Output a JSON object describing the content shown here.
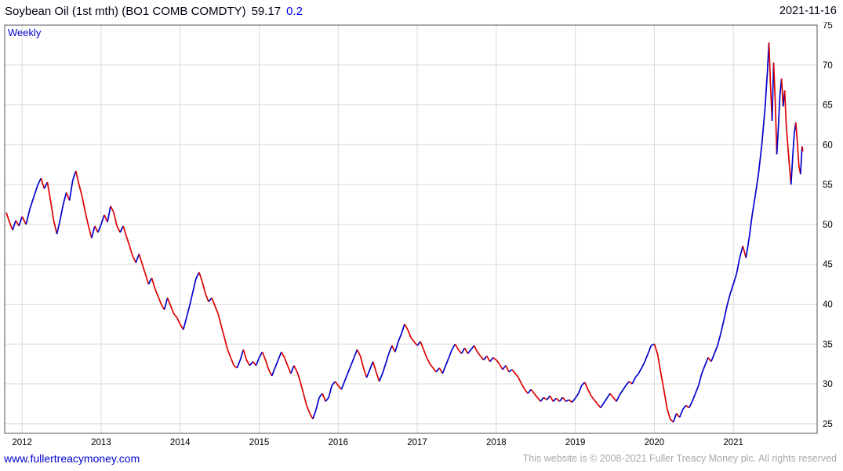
{
  "header": {
    "instrument": "Soybean Oil (1st mth) (BO1 COMB COMDTY)",
    "last_price": "59.17",
    "change": "0.2",
    "date": "2021-11-16"
  },
  "plot": {
    "frequency_label": "Weekly"
  },
  "footer": {
    "site_link": "www.fullertreacymoney.com",
    "copyright": "This website is © 2008-2021 Fuller Treacy Money plc. All rights reserved"
  },
  "colors": {
    "up": "#0000cc",
    "down": "#dd0000",
    "grid": "#d9d9d9",
    "plot_border": "#555555",
    "accent_blue": "#0000cc",
    "change_text": "#0000ee",
    "copyright_text": "#a9a9a9"
  },
  "chart_data": {
    "type": "line",
    "title": "Soybean Oil (1st mth) (BO1 COMB COMDTY)",
    "frequency": "Weekly",
    "as_of_date": "2021-11-16",
    "last": 59.17,
    "change": 0.2,
    "xlabel": "",
    "ylabel": "",
    "grid": true,
    "legend_position": "none",
    "xlim": [
      2011.78,
      2022.06
    ],
    "ylim": [
      23.8,
      75
    ],
    "yticks": [
      25,
      30,
      35,
      40,
      45,
      50,
      55,
      60,
      65,
      70,
      75
    ],
    "xticks": [
      2012,
      2013,
      2014,
      2015,
      2016,
      2017,
      2018,
      2019,
      2020,
      2021
    ],
    "series": [
      {
        "name": "BO1 COMB COMDTY weekly close (up weeks blue, down weeks red)",
        "points": [
          [
            2011.8,
            51.5
          ],
          [
            2011.84,
            50.3
          ],
          [
            2011.88,
            49.3
          ],
          [
            2011.92,
            50.5
          ],
          [
            2011.96,
            49.8
          ],
          [
            2012.0,
            51.0
          ],
          [
            2012.05,
            50.0
          ],
          [
            2012.1,
            52.0
          ],
          [
            2012.15,
            53.5
          ],
          [
            2012.2,
            55.0
          ],
          [
            2012.24,
            55.8
          ],
          [
            2012.28,
            54.5
          ],
          [
            2012.32,
            55.3
          ],
          [
            2012.36,
            53.0
          ],
          [
            2012.4,
            50.5
          ],
          [
            2012.44,
            48.8
          ],
          [
            2012.48,
            50.5
          ],
          [
            2012.52,
            52.5
          ],
          [
            2012.56,
            54.0
          ],
          [
            2012.6,
            53.0
          ],
          [
            2012.64,
            55.5
          ],
          [
            2012.68,
            56.7
          ],
          [
            2012.72,
            55.0
          ],
          [
            2012.76,
            53.5
          ],
          [
            2012.8,
            51.5
          ],
          [
            2012.84,
            49.8
          ],
          [
            2012.88,
            48.3
          ],
          [
            2012.92,
            49.8
          ],
          [
            2012.96,
            49.0
          ],
          [
            2013.0,
            50.0
          ],
          [
            2013.04,
            51.2
          ],
          [
            2013.08,
            50.3
          ],
          [
            2013.12,
            52.3
          ],
          [
            2013.16,
            51.5
          ],
          [
            2013.2,
            49.8
          ],
          [
            2013.24,
            49.0
          ],
          [
            2013.28,
            49.8
          ],
          [
            2013.32,
            48.5
          ],
          [
            2013.36,
            47.3
          ],
          [
            2013.4,
            46.0
          ],
          [
            2013.44,
            45.2
          ],
          [
            2013.48,
            46.3
          ],
          [
            2013.52,
            45.0
          ],
          [
            2013.56,
            43.8
          ],
          [
            2013.6,
            42.5
          ],
          [
            2013.64,
            43.3
          ],
          [
            2013.68,
            42.0
          ],
          [
            2013.72,
            41.0
          ],
          [
            2013.76,
            40.0
          ],
          [
            2013.8,
            39.3
          ],
          [
            2013.84,
            40.8
          ],
          [
            2013.88,
            39.8
          ],
          [
            2013.92,
            38.8
          ],
          [
            2013.96,
            38.3
          ],
          [
            2014.0,
            37.5
          ],
          [
            2014.04,
            36.8
          ],
          [
            2014.08,
            38.3
          ],
          [
            2014.12,
            39.8
          ],
          [
            2014.16,
            41.5
          ],
          [
            2014.2,
            43.2
          ],
          [
            2014.24,
            44.0
          ],
          [
            2014.28,
            42.8
          ],
          [
            2014.32,
            41.3
          ],
          [
            2014.36,
            40.3
          ],
          [
            2014.4,
            40.8
          ],
          [
            2014.44,
            39.8
          ],
          [
            2014.48,
            38.8
          ],
          [
            2014.52,
            37.3
          ],
          [
            2014.56,
            35.8
          ],
          [
            2014.6,
            34.3
          ],
          [
            2014.64,
            33.3
          ],
          [
            2014.68,
            32.3
          ],
          [
            2014.72,
            32.0
          ],
          [
            2014.76,
            33.0
          ],
          [
            2014.8,
            34.3
          ],
          [
            2014.84,
            33.0
          ],
          [
            2014.88,
            32.3
          ],
          [
            2014.92,
            32.8
          ],
          [
            2014.96,
            32.3
          ],
          [
            2015.0,
            33.3
          ],
          [
            2015.04,
            34.0
          ],
          [
            2015.08,
            33.0
          ],
          [
            2015.12,
            31.8
          ],
          [
            2015.16,
            31.0
          ],
          [
            2015.2,
            32.0
          ],
          [
            2015.24,
            33.0
          ],
          [
            2015.28,
            34.0
          ],
          [
            2015.32,
            33.3
          ],
          [
            2015.36,
            32.3
          ],
          [
            2015.4,
            31.3
          ],
          [
            2015.44,
            32.3
          ],
          [
            2015.48,
            31.5
          ],
          [
            2015.52,
            30.3
          ],
          [
            2015.56,
            28.8
          ],
          [
            2015.6,
            27.3
          ],
          [
            2015.64,
            26.3
          ],
          [
            2015.68,
            25.6
          ],
          [
            2015.72,
            26.8
          ],
          [
            2015.76,
            28.3
          ],
          [
            2015.8,
            28.8
          ],
          [
            2015.84,
            27.8
          ],
          [
            2015.88,
            28.3
          ],
          [
            2015.92,
            29.8
          ],
          [
            2015.96,
            30.3
          ],
          [
            2016.0,
            29.8
          ],
          [
            2016.04,
            29.3
          ],
          [
            2016.08,
            30.3
          ],
          [
            2016.12,
            31.3
          ],
          [
            2016.16,
            32.3
          ],
          [
            2016.2,
            33.3
          ],
          [
            2016.24,
            34.3
          ],
          [
            2016.28,
            33.5
          ],
          [
            2016.32,
            32.0
          ],
          [
            2016.36,
            30.8
          ],
          [
            2016.4,
            31.8
          ],
          [
            2016.44,
            32.8
          ],
          [
            2016.48,
            31.5
          ],
          [
            2016.52,
            30.3
          ],
          [
            2016.56,
            31.3
          ],
          [
            2016.6,
            32.5
          ],
          [
            2016.64,
            33.8
          ],
          [
            2016.68,
            34.8
          ],
          [
            2016.72,
            34.0
          ],
          [
            2016.76,
            35.3
          ],
          [
            2016.8,
            36.3
          ],
          [
            2016.84,
            37.5
          ],
          [
            2016.88,
            36.8
          ],
          [
            2016.92,
            35.8
          ],
          [
            2016.96,
            35.3
          ],
          [
            2017.0,
            34.8
          ],
          [
            2017.04,
            35.3
          ],
          [
            2017.08,
            34.3
          ],
          [
            2017.12,
            33.3
          ],
          [
            2017.16,
            32.5
          ],
          [
            2017.2,
            32.0
          ],
          [
            2017.24,
            31.5
          ],
          [
            2017.28,
            32.0
          ],
          [
            2017.32,
            31.3
          ],
          [
            2017.36,
            32.3
          ],
          [
            2017.4,
            33.3
          ],
          [
            2017.44,
            34.3
          ],
          [
            2017.48,
            35.0
          ],
          [
            2017.52,
            34.3
          ],
          [
            2017.56,
            33.8
          ],
          [
            2017.6,
            34.5
          ],
          [
            2017.64,
            33.8
          ],
          [
            2017.68,
            34.3
          ],
          [
            2017.72,
            34.8
          ],
          [
            2017.76,
            34.0
          ],
          [
            2017.8,
            33.5
          ],
          [
            2017.84,
            33.0
          ],
          [
            2017.88,
            33.5
          ],
          [
            2017.92,
            32.8
          ],
          [
            2017.96,
            33.3
          ],
          [
            2018.0,
            33.0
          ],
          [
            2018.04,
            32.5
          ],
          [
            2018.08,
            31.8
          ],
          [
            2018.12,
            32.3
          ],
          [
            2018.16,
            31.5
          ],
          [
            2018.2,
            31.8
          ],
          [
            2018.24,
            31.3
          ],
          [
            2018.28,
            30.8
          ],
          [
            2018.32,
            30.0
          ],
          [
            2018.36,
            29.3
          ],
          [
            2018.4,
            28.8
          ],
          [
            2018.44,
            29.3
          ],
          [
            2018.48,
            28.8
          ],
          [
            2018.52,
            28.3
          ],
          [
            2018.56,
            27.8
          ],
          [
            2018.6,
            28.3
          ],
          [
            2018.64,
            28.0
          ],
          [
            2018.68,
            28.5
          ],
          [
            2018.72,
            27.8
          ],
          [
            2018.76,
            28.2
          ],
          [
            2018.8,
            27.8
          ],
          [
            2018.84,
            28.3
          ],
          [
            2018.88,
            27.8
          ],
          [
            2018.92,
            28.0
          ],
          [
            2018.96,
            27.7
          ],
          [
            2019.0,
            28.2
          ],
          [
            2019.04,
            28.8
          ],
          [
            2019.08,
            29.8
          ],
          [
            2019.12,
            30.2
          ],
          [
            2019.16,
            29.3
          ],
          [
            2019.2,
            28.5
          ],
          [
            2019.24,
            28.0
          ],
          [
            2019.28,
            27.5
          ],
          [
            2019.32,
            27.0
          ],
          [
            2019.36,
            27.6
          ],
          [
            2019.4,
            28.2
          ],
          [
            2019.44,
            28.8
          ],
          [
            2019.48,
            28.3
          ],
          [
            2019.52,
            27.8
          ],
          [
            2019.56,
            28.6
          ],
          [
            2019.6,
            29.2
          ],
          [
            2019.64,
            29.8
          ],
          [
            2019.68,
            30.3
          ],
          [
            2019.72,
            30.0
          ],
          [
            2019.76,
            30.8
          ],
          [
            2019.8,
            31.3
          ],
          [
            2019.84,
            32.0
          ],
          [
            2019.88,
            32.8
          ],
          [
            2019.92,
            33.8
          ],
          [
            2019.96,
            34.8
          ],
          [
            2020.0,
            35.0
          ],
          [
            2020.04,
            33.8
          ],
          [
            2020.08,
            31.5
          ],
          [
            2020.12,
            29.3
          ],
          [
            2020.16,
            27.0
          ],
          [
            2020.2,
            25.6
          ],
          [
            2020.24,
            25.2
          ],
          [
            2020.28,
            26.3
          ],
          [
            2020.32,
            25.8
          ],
          [
            2020.36,
            26.8
          ],
          [
            2020.4,
            27.3
          ],
          [
            2020.44,
            27.0
          ],
          [
            2020.48,
            27.8
          ],
          [
            2020.52,
            28.8
          ],
          [
            2020.56,
            29.8
          ],
          [
            2020.6,
            31.3
          ],
          [
            2020.64,
            32.3
          ],
          [
            2020.68,
            33.3
          ],
          [
            2020.72,
            32.8
          ],
          [
            2020.76,
            33.8
          ],
          [
            2020.8,
            34.8
          ],
          [
            2020.84,
            36.3
          ],
          [
            2020.88,
            38.0
          ],
          [
            2020.92,
            39.8
          ],
          [
            2020.96,
            41.3
          ],
          [
            2021.0,
            42.5
          ],
          [
            2021.04,
            43.8
          ],
          [
            2021.08,
            45.8
          ],
          [
            2021.12,
            47.3
          ],
          [
            2021.16,
            45.8
          ],
          [
            2021.2,
            48.3
          ],
          [
            2021.24,
            51.3
          ],
          [
            2021.28,
            53.8
          ],
          [
            2021.32,
            56.5
          ],
          [
            2021.36,
            60.0
          ],
          [
            2021.4,
            64.5
          ],
          [
            2021.43,
            69.0
          ],
          [
            2021.45,
            72.8
          ],
          [
            2021.47,
            67.5
          ],
          [
            2021.49,
            63.0
          ],
          [
            2021.51,
            70.3
          ],
          [
            2021.53,
            65.5
          ],
          [
            2021.55,
            58.8
          ],
          [
            2021.57,
            62.3
          ],
          [
            2021.59,
            66.3
          ],
          [
            2021.61,
            68.3
          ],
          [
            2021.63,
            64.8
          ],
          [
            2021.65,
            66.8
          ],
          [
            2021.67,
            62.3
          ],
          [
            2021.69,
            59.8
          ],
          [
            2021.71,
            57.3
          ],
          [
            2021.73,
            55.0
          ],
          [
            2021.75,
            58.3
          ],
          [
            2021.77,
            61.3
          ],
          [
            2021.79,
            62.8
          ],
          [
            2021.81,
            60.3
          ],
          [
            2021.83,
            57.3
          ],
          [
            2021.85,
            56.3
          ],
          [
            2021.87,
            59.8
          ],
          [
            2021.88,
            59.17
          ]
        ]
      }
    ]
  }
}
